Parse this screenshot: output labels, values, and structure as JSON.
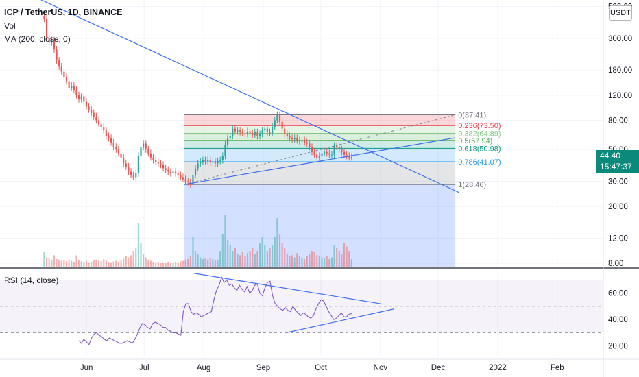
{
  "header": {
    "symbol": "ICP / TetherUS, 1D, BINANCE",
    "volume_label": "Vol",
    "ma_label": "MA (200, close, 0)",
    "rsi_label": "RSI (14, close)",
    "currency": "USDT"
  },
  "last_price": {
    "value": "44.40",
    "countdown": "15:47:37"
  },
  "colors": {
    "up": "#26a69a",
    "down": "#ef5350",
    "trendline": "#3d6ff2",
    "rsi": "#7e57c2",
    "price_box": "#0b8a7c"
  },
  "chart_data": [
    {
      "type": "candlestick",
      "scale": "log",
      "y_ticks": [
        500,
        300,
        180,
        120,
        80,
        50,
        30,
        20,
        12,
        8
      ],
      "y_tick_labels": [
        "500.00",
        "300.00",
        "180.00",
        "120.00",
        "80.00",
        "50.00",
        "30.00",
        "20.00",
        "12.00",
        "8.00"
      ],
      "ylim": [
        7.5,
        520
      ],
      "x_ticks": [
        "Jun",
        "Jul",
        "Aug",
        "Sep",
        "Oct",
        "Nov",
        "Dec",
        "2022",
        "Feb"
      ],
      "x_tick_dates": [
        "2021-06-01",
        "2021-07-01",
        "2021-08-01",
        "2021-09-01",
        "2021-10-01",
        "2021-11-01",
        "2021-12-01",
        "2022-01-01",
        "2022-02-01"
      ],
      "xlim": [
        "2021-04-17",
        "2022-02-25"
      ],
      "closes": [
        410,
        300,
        280,
        290,
        250,
        210,
        190,
        175,
        160,
        150,
        135,
        140,
        130,
        120,
        112,
        118,
        108,
        100,
        95,
        90,
        85,
        80,
        75,
        72,
        68,
        62,
        60,
        56,
        52,
        50,
        47,
        44,
        40,
        38,
        35,
        33,
        32,
        34,
        45,
        52,
        55,
        50,
        47,
        44,
        42,
        41,
        40,
        39,
        37,
        36,
        35,
        34,
        35,
        34,
        33,
        32,
        31,
        30,
        29.5,
        28.5,
        33,
        37,
        40,
        41,
        42,
        41.5,
        42,
        40.5,
        41,
        40,
        41.5,
        42,
        45,
        54,
        60,
        62,
        70,
        67,
        68,
        66,
        65,
        64,
        67,
        65,
        63,
        66,
        62,
        64,
        68,
        70,
        66,
        65,
        72,
        80,
        87,
        78,
        70,
        64,
        62,
        60,
        59,
        60,
        58,
        57,
        58,
        56,
        55,
        52,
        48,
        46,
        44,
        45,
        47,
        48,
        47,
        46,
        46,
        53,
        52,
        50,
        48,
        46,
        45,
        44,
        44.4
      ],
      "volumes": [
        0.28,
        0.18,
        0.16,
        0.14,
        0.22,
        0.15,
        0.14,
        0.12,
        0.13,
        0.11,
        0.14,
        0.12,
        0.1,
        0.22,
        0.13,
        0.11,
        0.1,
        0.12,
        0.09,
        0.1,
        0.13,
        0.14,
        0.12,
        0.11,
        0.15,
        0.12,
        0.1,
        0.09,
        0.11,
        0.12,
        0.1,
        0.13,
        0.16,
        0.2,
        0.18,
        0.22,
        0.3,
        0.35,
        0.8,
        0.45,
        0.25,
        0.18,
        0.14,
        0.12,
        0.1,
        0.09,
        0.1,
        0.08,
        0.09,
        0.08,
        0.1,
        0.09,
        0.08,
        0.1,
        0.09,
        0.11,
        0.12,
        0.14,
        0.15,
        0.2,
        0.55,
        0.3,
        0.25,
        0.18,
        0.15,
        0.16,
        0.14,
        0.17,
        0.15,
        0.13,
        0.14,
        0.3,
        0.6,
        0.95,
        0.5,
        0.4,
        0.3,
        0.35,
        0.25,
        0.22,
        0.28,
        0.2,
        0.26,
        0.3,
        0.35,
        0.25,
        0.3,
        0.45,
        0.55,
        0.4,
        0.3,
        0.35,
        0.4,
        0.55,
        0.9,
        0.6,
        0.45,
        0.35,
        0.25,
        0.2,
        0.22,
        0.18,
        0.26,
        0.2,
        0.17,
        0.15,
        0.2,
        0.25,
        0.3,
        0.28,
        0.22,
        0.2,
        0.18,
        0.16,
        0.2,
        0.15,
        0.18,
        0.4,
        0.35,
        0.3,
        0.25,
        0.45,
        0.38,
        0.3,
        0.15
      ],
      "fibonacci": {
        "start_date": "2021-07-22",
        "end_date": "2021-12-10",
        "levels": [
          {
            "label": "0(87.41)",
            "price": 87.41,
            "color": "#787b86"
          },
          {
            "label": "0.236(73.50)",
            "price": 73.5,
            "color": "#f23645"
          },
          {
            "label": "0.382(64.89)",
            "price": 64.89,
            "color": "#81c784"
          },
          {
            "label": "0.5(57.94)",
            "price": 57.94,
            "color": "#4caf50"
          },
          {
            "label": "0.618(50.98)",
            "price": 50.98,
            "color": "#089981"
          },
          {
            "label": "0.786(41.07)",
            "price": 41.07,
            "color": "#2196f3"
          },
          {
            "label": "1(28.46)",
            "price": 28.46,
            "color": "#787b86"
          }
        ]
      },
      "trendlines": [
        {
          "from": [
            "2021-05-08",
            560
          ],
          "to": [
            "2021-12-12",
            25
          ]
        },
        {
          "from": [
            "2021-07-22",
            28.46
          ],
          "to": [
            "2021-12-10",
            60.5
          ]
        }
      ],
      "dashed_line": {
        "from": [
          "2021-07-22",
          28.46
        ],
        "to": [
          "2021-12-10",
          87.41
        ]
      }
    },
    {
      "type": "line",
      "name": "RSI (14, close)",
      "y_ticks": [
        60,
        40,
        20
      ],
      "y_tick_labels": [
        "60.00",
        "40.00",
        "20.00"
      ],
      "ylim": [
        12,
        78
      ],
      "bands": [
        70,
        50,
        30
      ],
      "values": [
        24,
        22,
        25,
        23,
        21,
        26,
        29,
        30,
        28,
        27,
        25,
        24,
        26,
        25,
        24,
        23,
        22,
        22,
        23,
        24,
        23,
        22,
        25,
        29,
        34,
        37,
        36,
        34,
        33,
        37,
        38,
        37,
        36,
        34,
        34,
        32,
        31,
        30,
        30,
        29,
        28,
        46,
        52,
        52,
        46,
        44,
        45,
        44,
        42,
        43,
        44,
        45,
        46,
        55,
        62,
        66,
        72,
        68,
        70,
        66,
        67,
        64,
        62,
        66,
        63,
        61,
        65,
        60,
        62,
        66,
        67,
        60,
        58,
        64,
        68,
        69,
        58,
        52,
        50,
        48,
        47,
        49,
        47,
        46,
        50,
        47,
        45,
        43,
        45,
        44,
        42,
        41,
        43,
        48,
        52,
        55,
        54,
        50,
        46,
        43,
        40,
        41,
        43,
        45,
        42,
        42,
        44,
        44.5
      ],
      "trendlines": [
        {
          "from": [
            "2021-07-27",
            75
          ],
          "to": [
            "2021-11-01",
            52
          ]
        },
        {
          "from": [
            "2021-09-13",
            30
          ],
          "to": [
            "2021-11-08",
            48
          ]
        }
      ]
    }
  ]
}
